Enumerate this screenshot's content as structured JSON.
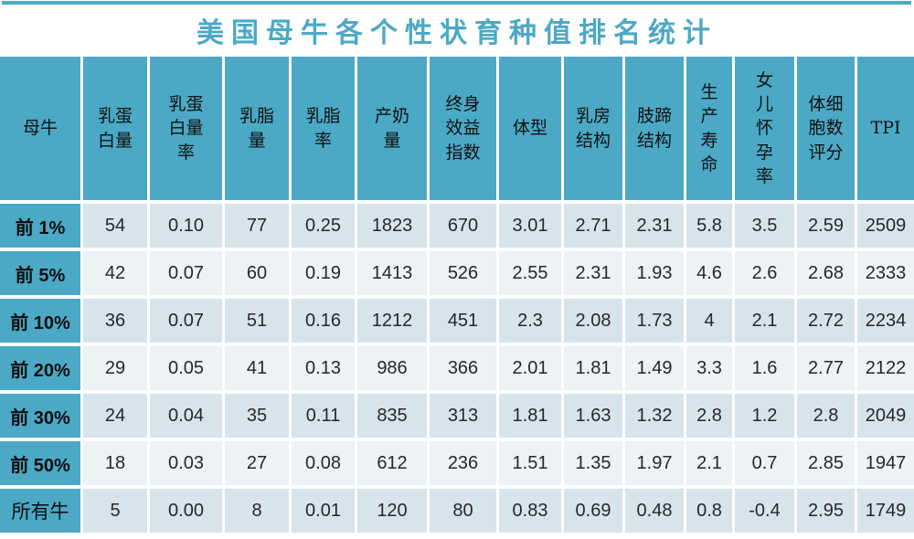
{
  "title": "美国母牛各个性状育种值排名统计",
  "colors": {
    "accent_teal": "#4BA9C5",
    "band_dark": "#D8E4EB",
    "band_light": "#EDF2F6",
    "title_text": "#4BA9C5",
    "header_text": "#101010",
    "cell_text": "#272727"
  },
  "table": {
    "columns": [
      {
        "label": "母牛"
      },
      {
        "label": "乳蛋\n白量"
      },
      {
        "label": "乳蛋\n白量\n率"
      },
      {
        "label": "乳脂\n量"
      },
      {
        "label": "乳脂\n率"
      },
      {
        "label": "产奶\n量"
      },
      {
        "label": "终身\n效益\n指数"
      },
      {
        "label": "体型"
      },
      {
        "label": "乳房\n结构"
      },
      {
        "label": "肢蹄\n结构"
      },
      {
        "label": "生\n产\n寿\n命"
      },
      {
        "label": "女\n儿\n怀\n孕\n率"
      },
      {
        "label": "体细\n胞数\n评分"
      },
      {
        "label": "TPI"
      }
    ],
    "rows": [
      {
        "label": "前 1%",
        "values": [
          "54",
          "0.10",
          "77",
          "0.25",
          "1823",
          "670",
          "3.01",
          "2.71",
          "2.31",
          "5.8",
          "3.5",
          "2.59",
          "2509"
        ]
      },
      {
        "label": "前 5%",
        "values": [
          "42",
          "0.07",
          "60",
          "0.19",
          "1413",
          "526",
          "2.55",
          "2.31",
          "1.93",
          "4.6",
          "2.6",
          "2.68",
          "2333"
        ]
      },
      {
        "label": "前 10%",
        "values": [
          "36",
          "0.07",
          "51",
          "0.16",
          "1212",
          "451",
          "2.3",
          "2.08",
          "1.73",
          "4",
          "2.1",
          "2.72",
          "2234"
        ]
      },
      {
        "label": "前 20%",
        "values": [
          "29",
          "0.05",
          "41",
          "0.13",
          "986",
          "366",
          "2.01",
          "1.81",
          "1.49",
          "3.3",
          "1.6",
          "2.77",
          "2122"
        ]
      },
      {
        "label": "前 30%",
        "values": [
          "24",
          "0.04",
          "35",
          "0.11",
          "835",
          "313",
          "1.81",
          "1.63",
          "1.32",
          "2.8",
          "1.2",
          "2.8",
          "2049"
        ]
      },
      {
        "label": "前 50%",
        "values": [
          "18",
          "0.03",
          "27",
          "0.08",
          "612",
          "236",
          "1.51",
          "1.35",
          "1.97",
          "2.1",
          "0.7",
          "2.85",
          "1947"
        ]
      },
      {
        "label": "所有牛",
        "values": [
          "5",
          "0.00",
          "8",
          "0.01",
          "120",
          "80",
          "0.83",
          "0.69",
          "0.48",
          "0.8",
          "-0.4",
          "2.95",
          "1749"
        ]
      }
    ]
  }
}
